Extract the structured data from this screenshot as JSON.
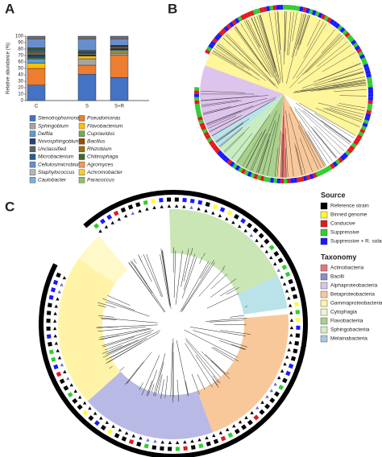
{
  "panels": {
    "a": "A",
    "b": "B",
    "c": "C"
  },
  "chart_data": {
    "type": "bar",
    "stacked": true,
    "y_label": "Relative abundance (%)",
    "categories": [
      "C",
      "S",
      "S+R"
    ],
    "ylim": [
      0,
      100
    ],
    "yticks": [
      0,
      10,
      20,
      30,
      40,
      50,
      60,
      70,
      80,
      90,
      100
    ],
    "series": [
      {
        "name": "Stenotrophomonas",
        "color": "#4472c4",
        "values": [
          24,
          41,
          36
        ]
      },
      {
        "name": "Pseudomonas",
        "color": "#ed7d31",
        "values": [
          26,
          14,
          35
        ]
      },
      {
        "name": "Sphingobium",
        "color": "#a5a5a5",
        "values": [
          0,
          10,
          2
        ]
      },
      {
        "name": "Flavobacterium",
        "color": "#ffc000",
        "values": [
          8,
          4,
          2
        ]
      },
      {
        "name": "Delftia",
        "color": "#5b9bd5",
        "values": [
          6,
          0,
          3
        ]
      },
      {
        "name": "Cupriavidus",
        "color": "#70ad47",
        "values": [
          2,
          0,
          1
        ]
      },
      {
        "name": "Novosphingobium",
        "color": "#264478",
        "values": [
          4,
          1,
          1
        ]
      },
      {
        "name": "Bacillus",
        "color": "#9e480e",
        "values": [
          1,
          1,
          1
        ]
      },
      {
        "name": "Unclassified",
        "color": "#636363",
        "values": [
          4,
          2,
          2
        ]
      },
      {
        "name": "Rhizobium",
        "color": "#997300",
        "values": [
          2,
          1,
          1
        ]
      },
      {
        "name": "Microbacterium",
        "color": "#255e91",
        "values": [
          3,
          2,
          1
        ]
      },
      {
        "name": "Chitinophaga",
        "color": "#43682b",
        "values": [
          2,
          2,
          1
        ]
      },
      {
        "name": "Cellulosimicrobium",
        "color": "#698ed0",
        "values": [
          14,
          18,
          10
        ]
      },
      {
        "name": "Agromyces",
        "color": "#f1975a",
        "values": [
          1,
          1,
          1
        ]
      },
      {
        "name": "Staphylococcus",
        "color": "#b7b7b7",
        "values": [
          1,
          1,
          1
        ]
      },
      {
        "name": "Achromobacter",
        "color": "#ffcd33",
        "values": [
          1,
          1,
          1
        ]
      },
      {
        "name": "Caulobacter",
        "color": "#7cafdd",
        "values": [
          1,
          1,
          1
        ]
      },
      {
        "name": "Paracoccus",
        "color": "#8cc168",
        "values": [
          0,
          0,
          0
        ]
      }
    ]
  },
  "legend_c": {
    "source_title": "Source",
    "source": [
      {
        "label": "Reference strain",
        "color": "#000000"
      },
      {
        "label": "Binned genome",
        "color": "#ffff33"
      },
      {
        "label": "Conducive",
        "color": "#e31a1c"
      },
      {
        "label": "Suppressive",
        "color": "#33cc33"
      },
      {
        "label": "Suppressive + R. solani",
        "color": "#1a1aff"
      }
    ],
    "taxonomy_title": "Taxonomy",
    "taxonomy": [
      {
        "label": "Actinobacteria",
        "color": "#e8767a"
      },
      {
        "label": "Bacilli",
        "color": "#8c8cc8"
      },
      {
        "label": "Alphaproteobacteria",
        "color": "#dcc3ea"
      },
      {
        "label": "Betaproteobacteria",
        "color": "#f9c89a"
      },
      {
        "label": "Gammaproteobacteria",
        "color": "#fff3a8"
      },
      {
        "label": "Cytophagia",
        "color": "#eef5d0"
      },
      {
        "label": "Flavobacteriia",
        "color": "#a9d18e"
      },
      {
        "label": "Sphingobacteriia",
        "color": "#d4ecc4"
      },
      {
        "label": "Melainabacteria",
        "color": "#a9c8e3"
      }
    ]
  }
}
